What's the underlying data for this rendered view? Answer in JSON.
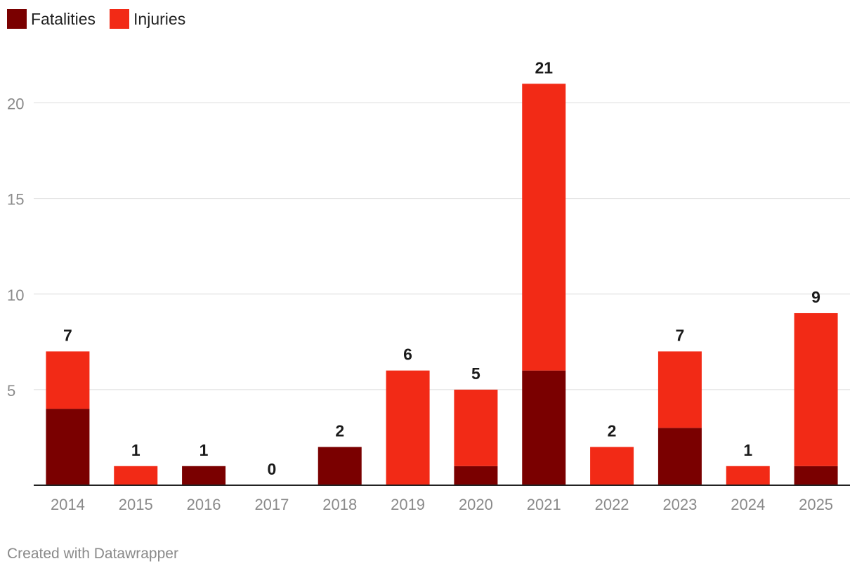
{
  "legend": {
    "fatalities_label": "Fatalities",
    "injuries_label": "Injuries"
  },
  "colors": {
    "fatalities": "#7a0000",
    "injuries": "#f22a16",
    "grid": "#dddddd",
    "axis": "#222222",
    "tick_text": "#8a8a8a",
    "value_text": "#1a1a1a"
  },
  "chart_data": {
    "type": "bar",
    "stacked": true,
    "title": "",
    "xlabel": "",
    "ylabel": "",
    "ylim": [
      0,
      21
    ],
    "yticks": [
      5,
      10,
      15,
      20
    ],
    "grid": true,
    "legend_position": "top-left",
    "categories": [
      "2014",
      "2015",
      "2016",
      "2017",
      "2018",
      "2019",
      "2020",
      "2021",
      "2022",
      "2023",
      "2024",
      "2025"
    ],
    "series": [
      {
        "name": "Fatalities",
        "values": [
          4,
          0,
          1,
          0,
          2,
          0,
          1,
          6,
          0,
          3,
          0,
          1
        ]
      },
      {
        "name": "Injuries",
        "values": [
          3,
          1,
          0,
          0,
          0,
          6,
          4,
          15,
          2,
          4,
          1,
          8
        ]
      }
    ],
    "totals": [
      7,
      1,
      1,
      0,
      2,
      6,
      5,
      21,
      2,
      7,
      1,
      9
    ]
  },
  "footer": {
    "credit": "Created with Datawrapper"
  }
}
